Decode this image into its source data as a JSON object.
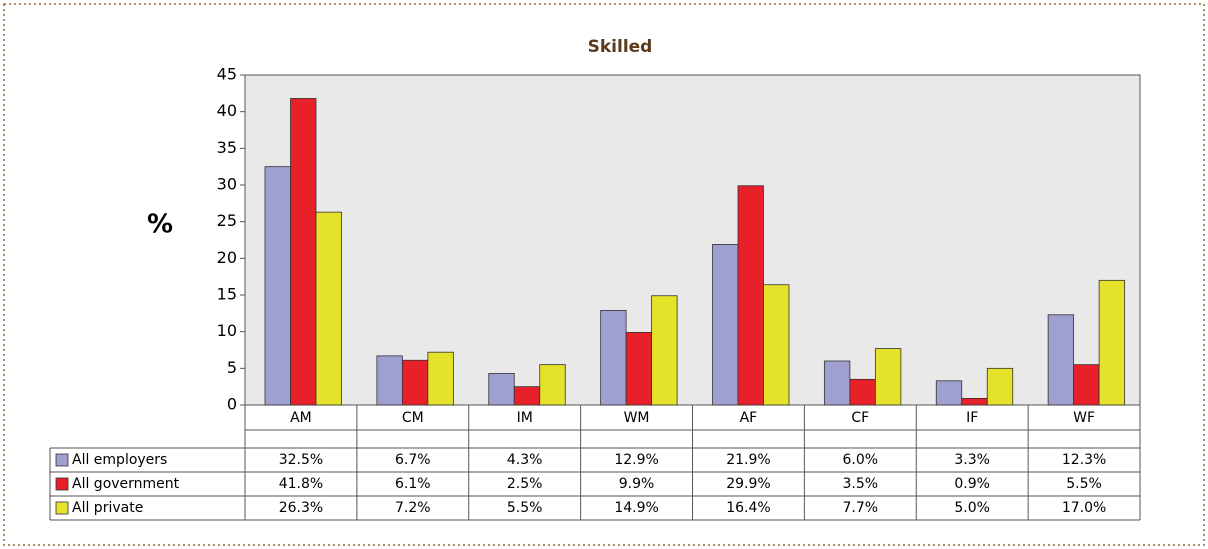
{
  "chart_data": {
    "type": "bar",
    "title": "Skilled",
    "y_label": "%",
    "categories": [
      "AM",
      "CM",
      "IM",
      "WM",
      "AF",
      "CF",
      "IF",
      "WF"
    ],
    "series": [
      {
        "name": "All employers",
        "color": "#9f9fd0",
        "values": [
          32.5,
          6.7,
          4.3,
          12.9,
          21.9,
          6.0,
          3.3,
          12.3
        ],
        "value_labels": [
          "32.5%",
          "6.7%",
          "4.3%",
          "12.9%",
          "21.9%",
          "6.0%",
          "3.3%",
          "12.3%"
        ]
      },
      {
        "name": "All government",
        "color": "#e8202a",
        "values": [
          41.8,
          6.1,
          2.5,
          9.9,
          29.9,
          3.5,
          0.9,
          5.5
        ],
        "value_labels": [
          "41.8%",
          "6.1%",
          "2.5%",
          "9.9%",
          "29.9%",
          "3.5%",
          "0.9%",
          "5.5%"
        ]
      },
      {
        "name": "All private",
        "color": "#e5e22a",
        "values": [
          26.3,
          7.2,
          5.5,
          14.9,
          16.4,
          7.7,
          5.0,
          17.0
        ],
        "value_labels": [
          "26.3%",
          "7.2%",
          "5.5%",
          "14.9%",
          "16.4%",
          "7.7%",
          "5.0%",
          "17.0%"
        ]
      }
    ],
    "ylim": [
      0,
      45
    ],
    "yticks": [
      0,
      5,
      10,
      15,
      20,
      25,
      30,
      35,
      40,
      45
    ]
  }
}
